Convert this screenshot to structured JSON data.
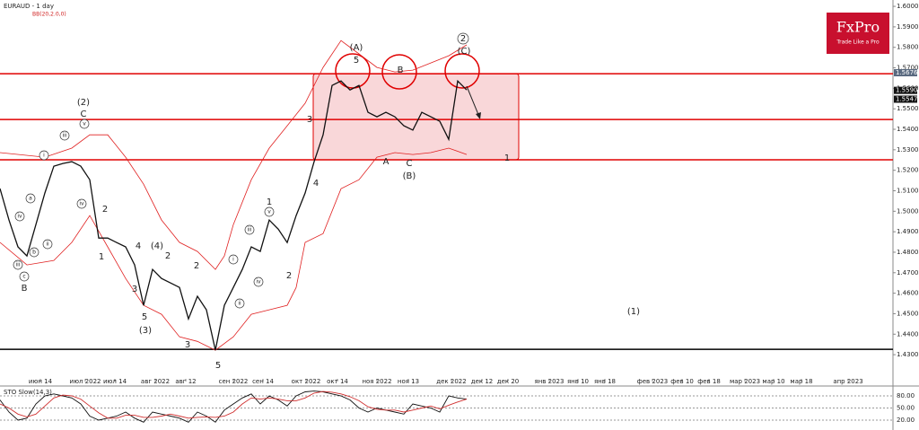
{
  "chart_data": {
    "type": "line",
    "title": "EURAUD - 1 day",
    "indicator": "BB(20,2.0,0)",
    "logo": {
      "brand": "FxPro",
      "tagline": "Trade Like a Pro"
    },
    "xlim": [
      0,
      298.5
    ],
    "ylim": [
      1.4169,
      1.6031
    ],
    "xticks": [
      {
        "value": 13.5,
        "label": "июн 14"
      },
      {
        "value": 28.5,
        "label": "июл 2022"
      },
      {
        "value": 38.4,
        "label": "июл 14"
      },
      {
        "value": 51.9,
        "label": "авг 2022"
      },
      {
        "value": 62.1,
        "label": "авг 12"
      },
      {
        "value": 78,
        "label": "сен 2022"
      },
      {
        "value": 87.9,
        "label": "сен 14"
      },
      {
        "value": 102.3,
        "label": "окт 2022"
      },
      {
        "value": 112.8,
        "label": "окт 14"
      },
      {
        "value": 126,
        "label": "ноя 2022"
      },
      {
        "value": 136.5,
        "label": "ноя 13"
      },
      {
        "value": 150.9,
        "label": "дек 2022"
      },
      {
        "value": 161.1,
        "label": "дек 12"
      },
      {
        "value": 169.8,
        "label": "дек 20"
      },
      {
        "value": 183.6,
        "label": "янв 2023"
      },
      {
        "value": 193.2,
        "label": "янв 10"
      },
      {
        "value": 202.2,
        "label": "янв 18"
      },
      {
        "value": 218.1,
        "label": "фев 2023"
      },
      {
        "value": 228,
        "label": "фев 10"
      },
      {
        "value": 237,
        "label": "фев 18"
      },
      {
        "value": 249,
        "label": "мар 2023"
      },
      {
        "value": 258.6,
        "label": "мар 10"
      },
      {
        "value": 267.9,
        "label": "мар 18"
      },
      {
        "value": 283.5,
        "label": "апр 2023"
      }
    ],
    "yticks": [
      {
        "value": 1.43,
        "label": "1.4300"
      },
      {
        "value": 1.44,
        "label": "1.4400"
      },
      {
        "value": 1.45,
        "label": "1.4500"
      },
      {
        "value": 1.46,
        "label": "1.4600"
      },
      {
        "value": 1.47,
        "label": "1.4700"
      },
      {
        "value": 1.48,
        "label": "1.4800"
      },
      {
        "value": 1.49,
        "label": "1.4900"
      },
      {
        "value": 1.5,
        "label": "1.5000"
      },
      {
        "value": 1.51,
        "label": "1.5100"
      },
      {
        "value": 1.52,
        "label": "1.5200"
      },
      {
        "value": 1.53,
        "label": "1.5300"
      },
      {
        "value": 1.54,
        "label": "1.5400"
      },
      {
        "value": 1.55,
        "label": "1.5500"
      },
      {
        "value": 1.56,
        "label": "1.5600"
      },
      {
        "value": 1.57,
        "label": "1.5700"
      },
      {
        "value": 1.58,
        "label": "1.5800"
      },
      {
        "value": 1.59,
        "label": "1.5900"
      },
      {
        "value": 1.6,
        "label": "1.6000"
      }
    ],
    "price_marks": [
      {
        "value": 1.5676,
        "label": "1.5676",
        "color": "#5a6a80"
      },
      {
        "value": 1.559,
        "label": "1.5590",
        "color": "#111111"
      },
      {
        "value": 1.5547,
        "label": "1.5547",
        "color": "#111111"
      }
    ],
    "x": [
      0,
      3,
      6,
      9,
      12,
      15,
      18,
      21,
      24,
      27,
      30,
      33,
      36,
      39,
      42,
      45,
      48,
      51,
      54,
      57,
      60,
      63,
      66,
      69,
      72,
      75,
      78,
      81,
      84,
      87,
      90,
      93,
      96,
      99,
      102,
      105,
      108,
      111,
      114,
      117,
      120,
      123,
      126,
      129,
      132,
      135,
      138,
      141,
      144,
      147,
      150,
      153,
      156
    ],
    "series": [
      {
        "name": "EURAUD",
        "color": "#111111",
        "values": [
          1.5111,
          1.4957,
          1.4826,
          1.4782,
          1.4935,
          1.5089,
          1.522,
          1.5233,
          1.5242,
          1.522,
          1.5154,
          1.4869,
          1.4869,
          1.4847,
          1.4826,
          1.4738,
          1.4541,
          1.4716,
          1.4672,
          1.465,
          1.4628,
          1.4475,
          1.4585,
          1.4519,
          1.4322,
          1.4541,
          1.4628,
          1.4716,
          1.4826,
          1.4804,
          1.4957,
          1.4913,
          1.4847,
          1.4979,
          1.5089,
          1.5242,
          1.5373,
          1.5614,
          1.5636,
          1.5592,
          1.5614,
          1.5483,
          1.5461,
          1.5483,
          1.5461,
          1.5417,
          1.5396,
          1.5483,
          1.5461,
          1.5439,
          1.5351,
          1.5636,
          1.5592
        ]
      }
    ],
    "bands": [
      {
        "color": "#e02020",
        "x": [
          0,
          15,
          24,
          30,
          36,
          42,
          48,
          54,
          60,
          66,
          72,
          75,
          78,
          84,
          90,
          96,
          102,
          108,
          114,
          120,
          126,
          132,
          138,
          144,
          150,
          156
        ],
        "values": [
          1.5286,
          1.5264,
          1.5308,
          1.5373,
          1.5373,
          1.5264,
          1.5132,
          1.4957,
          1.4848,
          1.4804,
          1.4716,
          1.4782,
          1.4935,
          1.5154,
          1.5308,
          1.5417,
          1.5527,
          1.5702,
          1.5833,
          1.5768,
          1.5702,
          1.568,
          1.5689,
          1.5724,
          1.5759,
          1.5812
        ]
      },
      {
        "color": "#e02020",
        "x": [
          0,
          9,
          18,
          24,
          30,
          36,
          42,
          48,
          54,
          60,
          66,
          72,
          78,
          84,
          90,
          96,
          99,
          102,
          108,
          114,
          120,
          126,
          132,
          138,
          144,
          150,
          156
        ],
        "values": [
          1.4848,
          1.4738,
          1.476,
          1.4848,
          1.4979,
          1.4826,
          1.4672,
          1.4541,
          1.4497,
          1.4387,
          1.4365,
          1.4322,
          1.4387,
          1.4497,
          1.4519,
          1.4541,
          1.4628,
          1.4848,
          1.4891,
          1.511,
          1.5154,
          1.5264,
          1.5286,
          1.5277,
          1.5286,
          1.5308,
          1.5277
        ]
      }
    ],
    "levels": [
      {
        "value": 1.5671,
        "color": "#e00000"
      },
      {
        "value": 1.5448,
        "color": "#e00000"
      },
      {
        "value": 1.5251,
        "color": "#e00000"
      },
      {
        "value": 1.4326,
        "color": "#000000"
      }
    ],
    "zone": {
      "x": [
        104.7,
        173.4
      ],
      "y": [
        1.5251,
        1.5671
      ],
      "color": "#f7c6c9"
    },
    "wave_labels": [
      "(A)",
      "5",
      "B",
      "2",
      "(C)",
      "3",
      "A",
      "C",
      "(B)",
      "1",
      "4",
      "1",
      "2",
      "(1)",
      "(2)",
      "C",
      "2",
      "1",
      "4",
      "(4)",
      "2",
      "3",
      "2",
      "5",
      "(3)",
      "3",
      "5",
      "B",
      "i",
      "iii",
      "iv",
      "ii",
      "a",
      "b",
      "c",
      "iv",
      "iii",
      "v",
      "i",
      "ii",
      "iii",
      "iv",
      "v"
    ],
    "oscillator": {
      "title": "STO Slow(14,3)",
      "ylim": [
        0,
        100
      ],
      "yticks": [
        {
          "value": 80,
          "label": "80.00"
        },
        {
          "value": 50,
          "label": "50.00"
        },
        {
          "value": 20,
          "label": "20.00"
        }
      ],
      "series": [
        {
          "color": "#111111",
          "values": [
            70,
            40,
            20,
            25,
            60,
            80,
            85,
            80,
            75,
            60,
            30,
            20,
            25,
            30,
            40,
            25,
            15,
            40,
            35,
            30,
            25,
            15,
            40,
            30,
            15,
            45,
            60,
            75,
            85,
            60,
            80,
            70,
            55,
            80,
            90,
            92,
            90,
            85,
            80,
            70,
            50,
            40,
            50,
            45,
            40,
            35,
            60,
            55,
            50,
            40,
            80,
            75,
            72
          ]
        },
        {
          "color": "#d03030",
          "values": [
            60,
            50,
            35,
            28,
            35,
            55,
            75,
            82,
            80,
            72,
            55,
            38,
            25,
            25,
            32,
            32,
            27,
            27,
            30,
            35,
            30,
            25,
            27,
            28,
            27,
            30,
            40,
            60,
            75,
            72,
            75,
            72,
            68,
            68,
            75,
            87,
            91,
            89,
            85,
            78,
            68,
            53,
            47,
            45,
            45,
            40,
            45,
            50,
            55,
            48,
            57,
            65,
            72
          ]
        }
      ]
    }
  }
}
